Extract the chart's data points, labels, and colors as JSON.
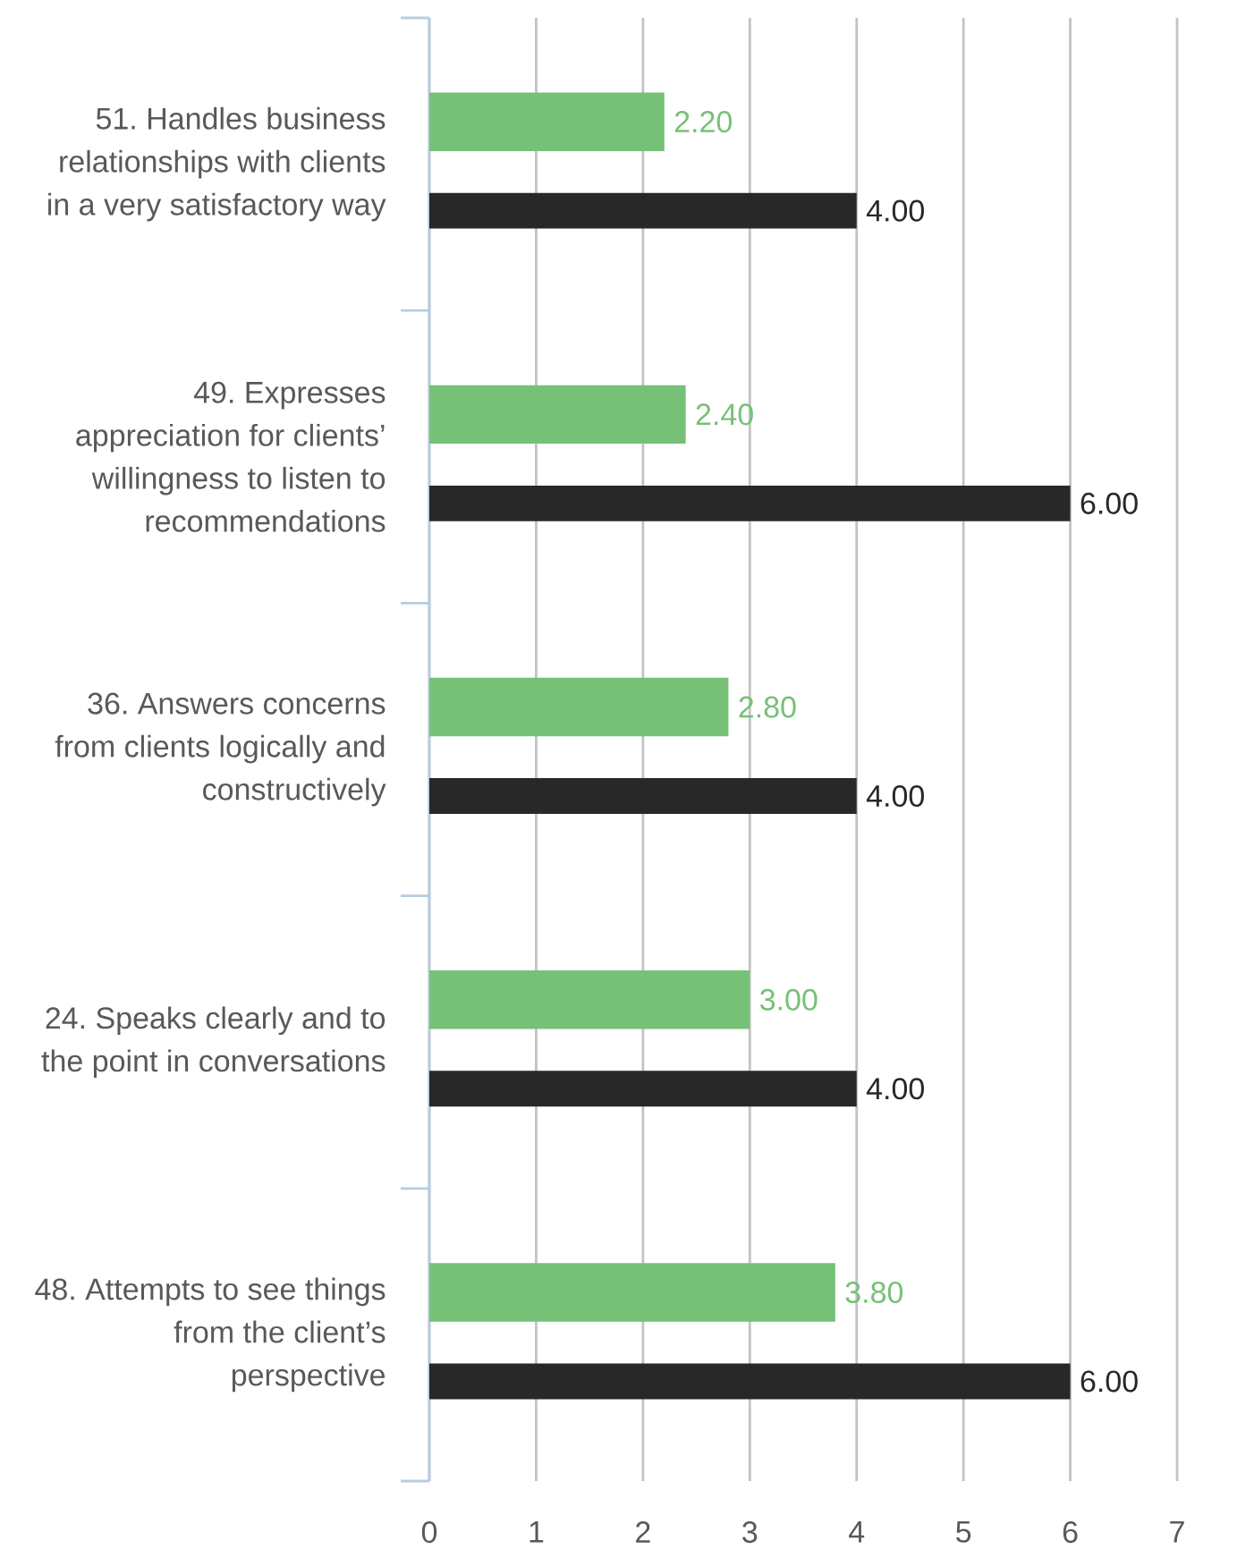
{
  "chart_data": {
    "type": "bar",
    "orientation": "horizontal",
    "categories": [
      "51. Handles business relationships with clients in a very satisfactory way",
      "49. Expresses appreciation for clients’ willingness to listen to recommendations",
      "36. Answers concerns from clients logically and constructively",
      "24. Speaks clearly and to the point in conversations",
      "48. Attempts to see things from the client’s perspective"
    ],
    "series": [
      {
        "color": "#77c077",
        "values": [
          2.2,
          2.4,
          2.8,
          3.0,
          3.8
        ],
        "value_labels": [
          "2.20",
          "2.40",
          "2.80",
          "3.00",
          "3.80"
        ]
      },
      {
        "color": "#282828",
        "values": [
          4,
          6,
          4,
          4,
          6
        ],
        "value_labels": [
          "4.00",
          "6.00",
          "4.00",
          "4.00",
          "6.00"
        ]
      }
    ],
    "xlim": [
      0,
      7
    ],
    "xticks": [
      0,
      1,
      2,
      3,
      4,
      5,
      6,
      7
    ],
    "grid": "x"
  }
}
